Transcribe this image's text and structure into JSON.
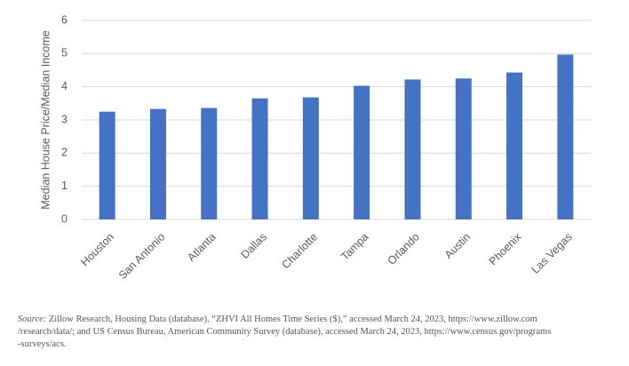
{
  "chart_data": {
    "type": "bar",
    "y_label": "Median House Price/Median Income",
    "categories": [
      "Houston",
      "San Antonio",
      "Atlanta",
      "Dallas",
      "Charlotte",
      "Tampa",
      "Orlando",
      "Austin",
      "Phoenix",
      "Las Vegas"
    ],
    "values": [
      3.25,
      3.33,
      3.36,
      3.65,
      3.68,
      4.03,
      4.22,
      4.25,
      4.43,
      4.97
    ],
    "color": "#4472c4",
    "ylim": [
      0,
      6
    ],
    "yticks": [
      0,
      1,
      2,
      3,
      4,
      5,
      6
    ],
    "grid": true
  },
  "source": {
    "label": "Source:",
    "lines": [
      "Zillow Research, Housing Data (database), “ZHVI All Homes Time Series ($),” accessed March 24, 2023, https://www.zillow.com",
      "/research/data/; and US Census Bureau, American Community Survey (database), accessed March 24, 2023, https://www.census.gov/programs",
      "-surveys/acs."
    ]
  }
}
